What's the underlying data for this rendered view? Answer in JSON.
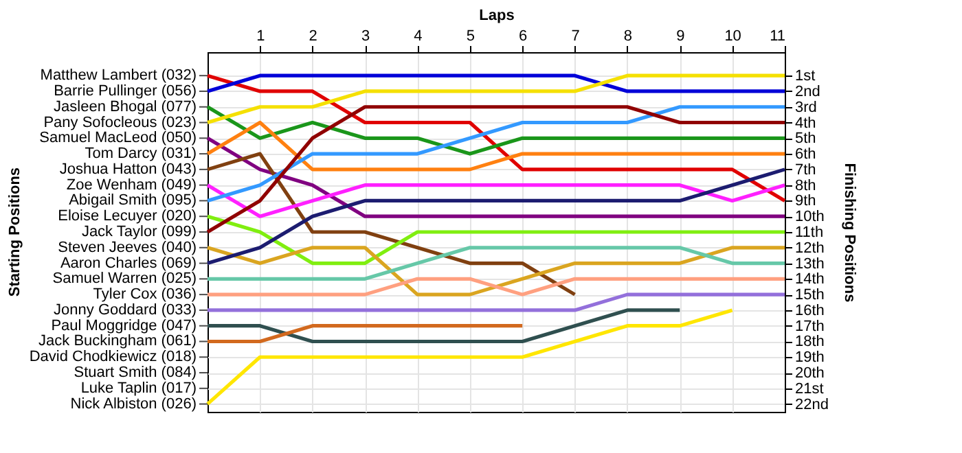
{
  "chart_data": {
    "type": "line",
    "xlabel": "Laps",
    "ylabel": "Finishing Positions",
    "x": [
      0,
      1,
      2,
      3,
      4,
      5,
      6,
      7,
      8,
      9,
      10,
      11
    ],
    "xlim": [
      0,
      11
    ],
    "xticks": [
      1,
      2,
      3,
      4,
      5,
      6,
      7,
      8,
      9,
      10,
      11
    ],
    "ylim": [
      22.5,
      -0.5
    ],
    "yticks": [
      {
        "value": 1,
        "label": "1st"
      },
      {
        "value": 2,
        "label": "2nd"
      },
      {
        "value": 3,
        "label": "3rd"
      },
      {
        "value": 4,
        "label": "4th"
      },
      {
        "value": 5,
        "label": "5th"
      },
      {
        "value": 6,
        "label": "6th"
      },
      {
        "value": 7,
        "label": "7th"
      },
      {
        "value": 8,
        "label": "8th"
      },
      {
        "value": 9,
        "label": "9th"
      },
      {
        "value": 10,
        "label": "10th"
      },
      {
        "value": 11,
        "label": "11th"
      },
      {
        "value": 12,
        "label": "12th"
      },
      {
        "value": 13,
        "label": "13th"
      },
      {
        "value": 14,
        "label": "14th"
      },
      {
        "value": 15,
        "label": "15th"
      },
      {
        "value": 16,
        "label": "16th"
      },
      {
        "value": 17,
        "label": "17th"
      },
      {
        "value": 18,
        "label": "18th"
      },
      {
        "value": 19,
        "label": "19th"
      },
      {
        "value": 20,
        "label": "20th"
      },
      {
        "value": 21,
        "label": "21st"
      },
      {
        "value": 22,
        "label": "22nd"
      }
    ],
    "annotations": [
      "Starting Positions",
      "Matthew Lambert (032)",
      "Barrie Pullinger (056)",
      "Jasleen Bhogal (077)",
      "Pany Sofocleous (023)",
      "Samuel MacLeod (050)",
      "Tom Darcy (031)",
      "Joshua Hatton (043)",
      "Zoe Wenham (049)",
      "Abigail Smith (095)",
      "Eloise Lecuyer (020)",
      "Jack Taylor (099)",
      "Steven Jeeves (040)",
      "Aaron Charles (069)",
      "Samuel Warren (025)",
      "Tyler Cox (036)",
      "Jonny Goddard (033)",
      "Paul Moggridge (047)",
      "Jack Buckingham (061)",
      "David Chodkiewicz (018)",
      "Stuart Smith (084)",
      "Luke Taplin (017)",
      "Nick Albiston (026)"
    ],
    "grid": true,
    "legend": false,
    "marker": "none",
    "line_style": "solid",
    "series": [
      {
        "color": "#e00000",
        "values": [
          1,
          2,
          2,
          4,
          4,
          4,
          7,
          7,
          7,
          7,
          7,
          9
        ]
      },
      {
        "color": "#0000d8",
        "values": [
          2,
          1,
          1,
          1,
          1,
          1,
          1,
          1,
          2,
          2,
          2,
          2
        ]
      },
      {
        "color": "#1a961a",
        "values": [
          3,
          5,
          4,
          5,
          5,
          6,
          5,
          5,
          5,
          5,
          5,
          5
        ]
      },
      {
        "color": "#f5e000",
        "values": [
          4,
          3,
          3,
          2,
          2,
          2,
          2,
          2,
          1,
          1,
          1,
          1
        ]
      },
      {
        "color": "#800080",
        "values": [
          5,
          7,
          8,
          10,
          10,
          10,
          10,
          10,
          10,
          10,
          10,
          10
        ]
      },
      {
        "color": "#ff8010",
        "values": [
          6,
          4,
          7,
          7,
          7,
          7,
          6,
          6,
          6,
          6,
          6,
          6
        ]
      },
      {
        "color": "#804010",
        "values": [
          7,
          6,
          11,
          11,
          12,
          13,
          13,
          15,
          null,
          null,
          null,
          null
        ]
      },
      {
        "color": "#ff20ff",
        "values": [
          8,
          10,
          9,
          8,
          8,
          8,
          8,
          8,
          8,
          8,
          9,
          8
        ]
      },
      {
        "color": "#3399ff",
        "values": [
          9,
          8,
          6,
          6,
          6,
          5,
          4,
          4,
          4,
          3,
          3,
          3
        ]
      },
      {
        "color": "#80ee10",
        "values": [
          10,
          11,
          13,
          13,
          11,
          11,
          11,
          11,
          11,
          11,
          11,
          11
        ]
      },
      {
        "color": "#900000",
        "values": [
          11,
          9,
          5,
          3,
          3,
          3,
          3,
          3,
          3,
          4,
          4,
          4
        ]
      },
      {
        "color": "#daa520",
        "values": [
          12,
          13,
          12,
          12,
          15,
          15,
          14,
          13,
          13,
          13,
          12,
          12
        ]
      },
      {
        "color": "#1c1c70",
        "values": [
          13,
          12,
          10,
          9,
          9,
          9,
          9,
          9,
          9,
          9,
          8,
          7
        ]
      },
      {
        "color": "#66c8a8",
        "values": [
          14,
          14,
          14,
          14,
          13,
          12,
          12,
          12,
          12,
          12,
          13,
          13
        ]
      },
      {
        "color": "#ffa080",
        "values": [
          15,
          15,
          15,
          15,
          14,
          14,
          15,
          14,
          14,
          14,
          14,
          14
        ]
      },
      {
        "color": "#9370db",
        "values": [
          16,
          16,
          16,
          16,
          16,
          16,
          16,
          16,
          15,
          15,
          15,
          15
        ]
      },
      {
        "color": "#2f4f4f",
        "values": [
          17,
          17,
          18,
          18,
          18,
          18,
          18,
          17,
          16,
          16,
          null,
          null
        ]
      },
      {
        "color": "#d2691e",
        "values": [
          18,
          18,
          17,
          17,
          17,
          17,
          17,
          null,
          null,
          null,
          null,
          null
        ]
      },
      {
        "color": "#ffe600",
        "values": [
          22,
          19,
          19,
          19,
          19,
          19,
          19,
          18,
          17,
          17,
          16,
          null
        ]
      }
    ]
  }
}
